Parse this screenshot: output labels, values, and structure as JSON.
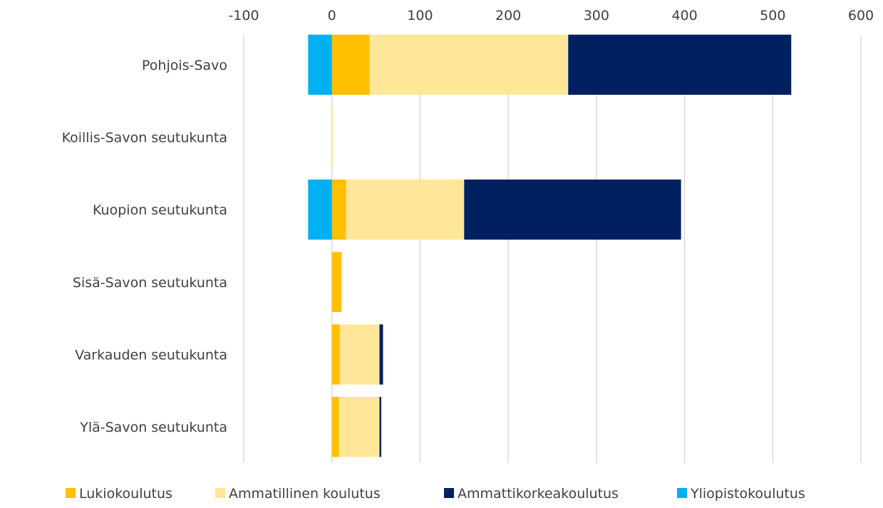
{
  "chart_data": {
    "type": "bar",
    "orientation": "horizontal",
    "stacked": true,
    "categories": [
      "Pohjois-Savo",
      "Koillis-Savon seutukunta",
      "Kuopion seutukunta",
      "Sisä-Savon seutukunta",
      "Varkauden seutukunta",
      "Ylä-Savon seutukunta"
    ],
    "series": [
      {
        "name": "Lukiokoulutus",
        "color": "#FFC000",
        "values": [
          43,
          0,
          16,
          11,
          9,
          8
        ]
      },
      {
        "name": "Ammatillinen koulutus",
        "color": "#FFE699",
        "values": [
          225,
          1,
          134,
          0,
          45,
          46
        ]
      },
      {
        "name": "Ammattikorkeakoulutus",
        "color": "#002060",
        "values": [
          253,
          0,
          246,
          0,
          4,
          2
        ]
      },
      {
        "name": "Yliopistokoulutus",
        "color": "#00B0F0",
        "values": [
          -27,
          0,
          -27,
          0,
          0,
          0
        ]
      }
    ],
    "xlim": [
      -100,
      600
    ],
    "xticks": [
      "-100",
      "0",
      "100",
      "200",
      "300",
      "400",
      "500",
      "600"
    ],
    "xtick_values": [
      -100,
      0,
      100,
      200,
      300,
      400,
      500,
      600
    ],
    "axis_position": "top",
    "grid": true,
    "legend_position": "bottom",
    "title": "",
    "xlabel": "",
    "ylabel": ""
  }
}
